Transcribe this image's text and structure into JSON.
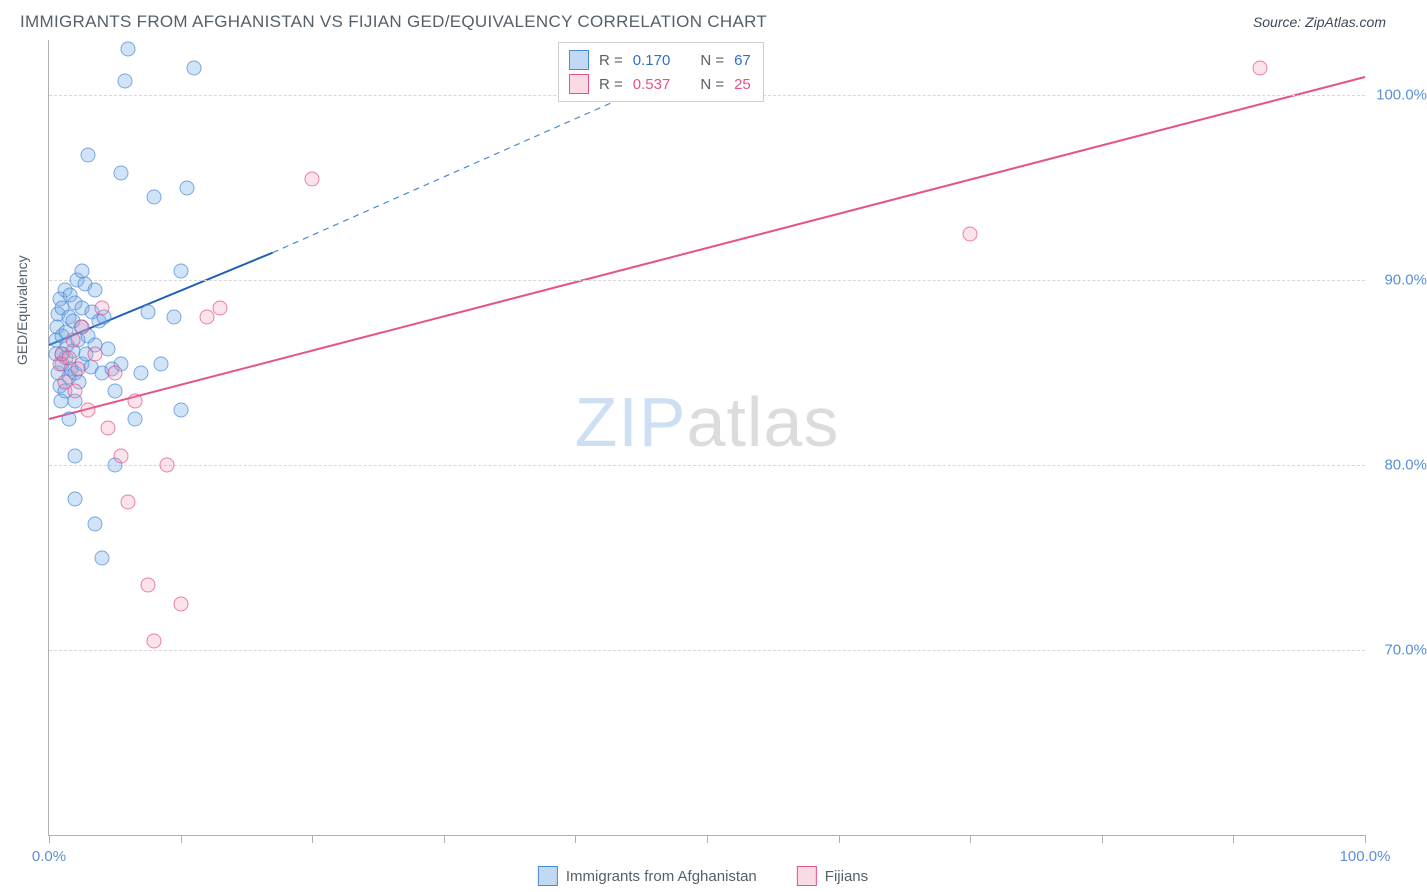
{
  "title": "IMMIGRANTS FROM AFGHANISTAN VS FIJIAN GED/EQUIVALENCY CORRELATION CHART",
  "source_label": "Source: ",
  "source_value": "ZipAtlas.com",
  "ylabel": "GED/Equivalency",
  "watermark_a": "ZIP",
  "watermark_b": "atlas",
  "chart": {
    "type": "scatter",
    "background_color": "#ffffff",
    "grid_color": "#d7d7d7",
    "axis_color": "#b0b0b0",
    "tick_label_color": "#5b8fd6",
    "title_color": "#55606a",
    "title_fontsize": 17,
    "label_fontsize": 14,
    "tick_fontsize": 15,
    "xlim": [
      0,
      100
    ],
    "ylim": [
      60,
      103
    ],
    "xtick_positions": [
      0,
      10,
      20,
      30,
      40,
      50,
      60,
      70,
      80,
      90,
      100
    ],
    "xtick_labels": {
      "0": "0.0%",
      "100": "100.0%"
    },
    "ytick_positions": [
      70,
      80,
      90,
      100
    ],
    "ytick_labels": [
      "70.0%",
      "80.0%",
      "90.0%",
      "100.0%"
    ],
    "marker_size": 13,
    "marker_opacity": 0.75,
    "series": [
      {
        "name": "Immigrants from Afghanistan",
        "fill": "rgba(120,170,230,0.45)",
        "stroke": "#4a8ad4",
        "R": "0.170",
        "N": "67",
        "trend": {
          "x1": 0,
          "y1": 86.5,
          "x2": 17,
          "y2": 91.5,
          "dashed_to": {
            "x": 44,
            "y": 100
          },
          "width": 2
        },
        "points": [
          [
            0.5,
            86.0
          ],
          [
            0.5,
            86.8
          ],
          [
            0.6,
            87.5
          ],
          [
            0.7,
            85.0
          ],
          [
            0.7,
            88.2
          ],
          [
            0.8,
            84.3
          ],
          [
            0.8,
            89.0
          ],
          [
            0.9,
            83.5
          ],
          [
            1.0,
            86.0
          ],
          [
            1.0,
            87.0
          ],
          [
            1.0,
            85.5
          ],
          [
            1.0,
            88.5
          ],
          [
            1.2,
            84.0
          ],
          [
            1.2,
            89.5
          ],
          [
            1.3,
            85.8
          ],
          [
            1.3,
            87.2
          ],
          [
            1.4,
            86.5
          ],
          [
            1.5,
            88.0
          ],
          [
            1.5,
            84.8
          ],
          [
            1.6,
            89.2
          ],
          [
            1.7,
            85.2
          ],
          [
            1.8,
            87.8
          ],
          [
            1.8,
            86.2
          ],
          [
            2.0,
            88.8
          ],
          [
            2.0,
            85.0
          ],
          [
            2.1,
            90.0
          ],
          [
            2.2,
            86.8
          ],
          [
            2.3,
            84.5
          ],
          [
            2.4,
            87.5
          ],
          [
            2.5,
            88.5
          ],
          [
            2.5,
            85.5
          ],
          [
            2.7,
            89.8
          ],
          [
            2.8,
            86.0
          ],
          [
            3.0,
            87.0
          ],
          [
            3.0,
            96.8
          ],
          [
            3.2,
            85.3
          ],
          [
            3.3,
            88.3
          ],
          [
            3.5,
            86.5
          ],
          [
            3.5,
            89.5
          ],
          [
            3.8,
            87.8
          ],
          [
            4.0,
            85.0
          ],
          [
            4.2,
            88.0
          ],
          [
            4.5,
            86.3
          ],
          [
            4.8,
            85.2
          ],
          [
            5.0,
            84.0
          ],
          [
            5.5,
            85.5
          ],
          [
            5.5,
            95.8
          ],
          [
            5.8,
            100.8
          ],
          [
            6.0,
            102.5
          ],
          [
            6.5,
            82.5
          ],
          [
            7.0,
            85.0
          ],
          [
            7.5,
            88.3
          ],
          [
            8.0,
            94.5
          ],
          [
            8.5,
            85.5
          ],
          [
            9.5,
            88.0
          ],
          [
            10.0,
            83.0
          ],
          [
            10.0,
            90.5
          ],
          [
            10.5,
            95.0
          ],
          [
            11.0,
            101.5
          ],
          [
            2.0,
            83.5
          ],
          [
            2.0,
            80.5
          ],
          [
            3.5,
            76.8
          ],
          [
            2.0,
            78.2
          ],
          [
            4.0,
            75.0
          ],
          [
            5.0,
            80.0
          ],
          [
            1.5,
            82.5
          ],
          [
            2.5,
            90.5
          ]
        ]
      },
      {
        "name": "Fijians",
        "fill": "rgba(240,150,180,0.35)",
        "stroke": "#e6528a",
        "R": "0.537",
        "N": "25",
        "trend": {
          "x1": 0,
          "y1": 82.5,
          "x2": 100,
          "y2": 101.0,
          "width": 2
        },
        "points": [
          [
            0.8,
            85.5
          ],
          [
            1.0,
            86.0
          ],
          [
            1.2,
            84.5
          ],
          [
            1.5,
            85.8
          ],
          [
            1.8,
            86.8
          ],
          [
            2.0,
            84.0
          ],
          [
            2.2,
            85.2
          ],
          [
            2.5,
            87.5
          ],
          [
            3.0,
            83.0
          ],
          [
            3.5,
            86.0
          ],
          [
            4.0,
            88.5
          ],
          [
            4.5,
            82.0
          ],
          [
            5.0,
            85.0
          ],
          [
            5.5,
            80.5
          ],
          [
            6.0,
            78.0
          ],
          [
            6.5,
            83.5
          ],
          [
            7.5,
            73.5
          ],
          [
            8.0,
            70.5
          ],
          [
            9.0,
            80.0
          ],
          [
            10.0,
            72.5
          ],
          [
            12.0,
            88.0
          ],
          [
            13.0,
            88.5
          ],
          [
            20.0,
            95.5
          ],
          [
            70.0,
            92.5
          ],
          [
            92.0,
            101.5
          ]
        ]
      }
    ]
  },
  "stats_labels": {
    "r_prefix": "R = ",
    "n_prefix": "N = "
  },
  "legend": {
    "a": "Immigrants from Afghanistan",
    "b": "Fijians"
  }
}
